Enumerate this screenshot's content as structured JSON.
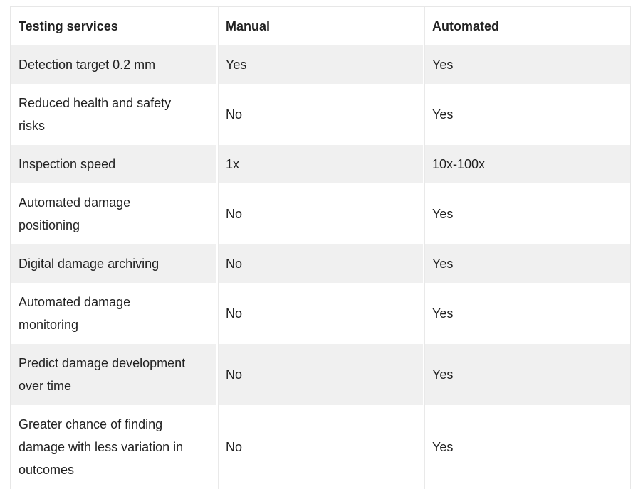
{
  "chart_data": {
    "type": "table",
    "title": "",
    "columns": [
      "Testing services",
      "Manual",
      "Automated"
    ],
    "rows": [
      [
        "Detection target 0.2 mm",
        "Yes",
        "Yes"
      ],
      [
        "Reduced health and safety\nrisks",
        "No",
        "Yes"
      ],
      [
        "Inspection speed",
        "1x",
        "10x-100x"
      ],
      [
        "Automated damage\npositioning",
        "No",
        "Yes"
      ],
      [
        "Digital damage archiving",
        "No",
        "Yes"
      ],
      [
        "Automated damage\nmonitoring",
        "No",
        "Yes"
      ],
      [
        "Predict damage development\nover time",
        "No",
        "Yes"
      ],
      [
        "Greater chance of finding\ndamage with less variation in\noutcomes",
        "No",
        "Yes"
      ]
    ],
    "layout": {
      "legend": "none",
      "grid": "off",
      "striped_rows": true,
      "stripe_applies_to": "1st, 3rd, 5th, 7th body rows",
      "header_style": "bold, white background"
    }
  },
  "colors": {
    "background": "#ffffff",
    "stripe": "#f0f0f0",
    "text": "#212121",
    "table_border": "#e7e7e7",
    "column_divider": "#e9e9e9"
  }
}
